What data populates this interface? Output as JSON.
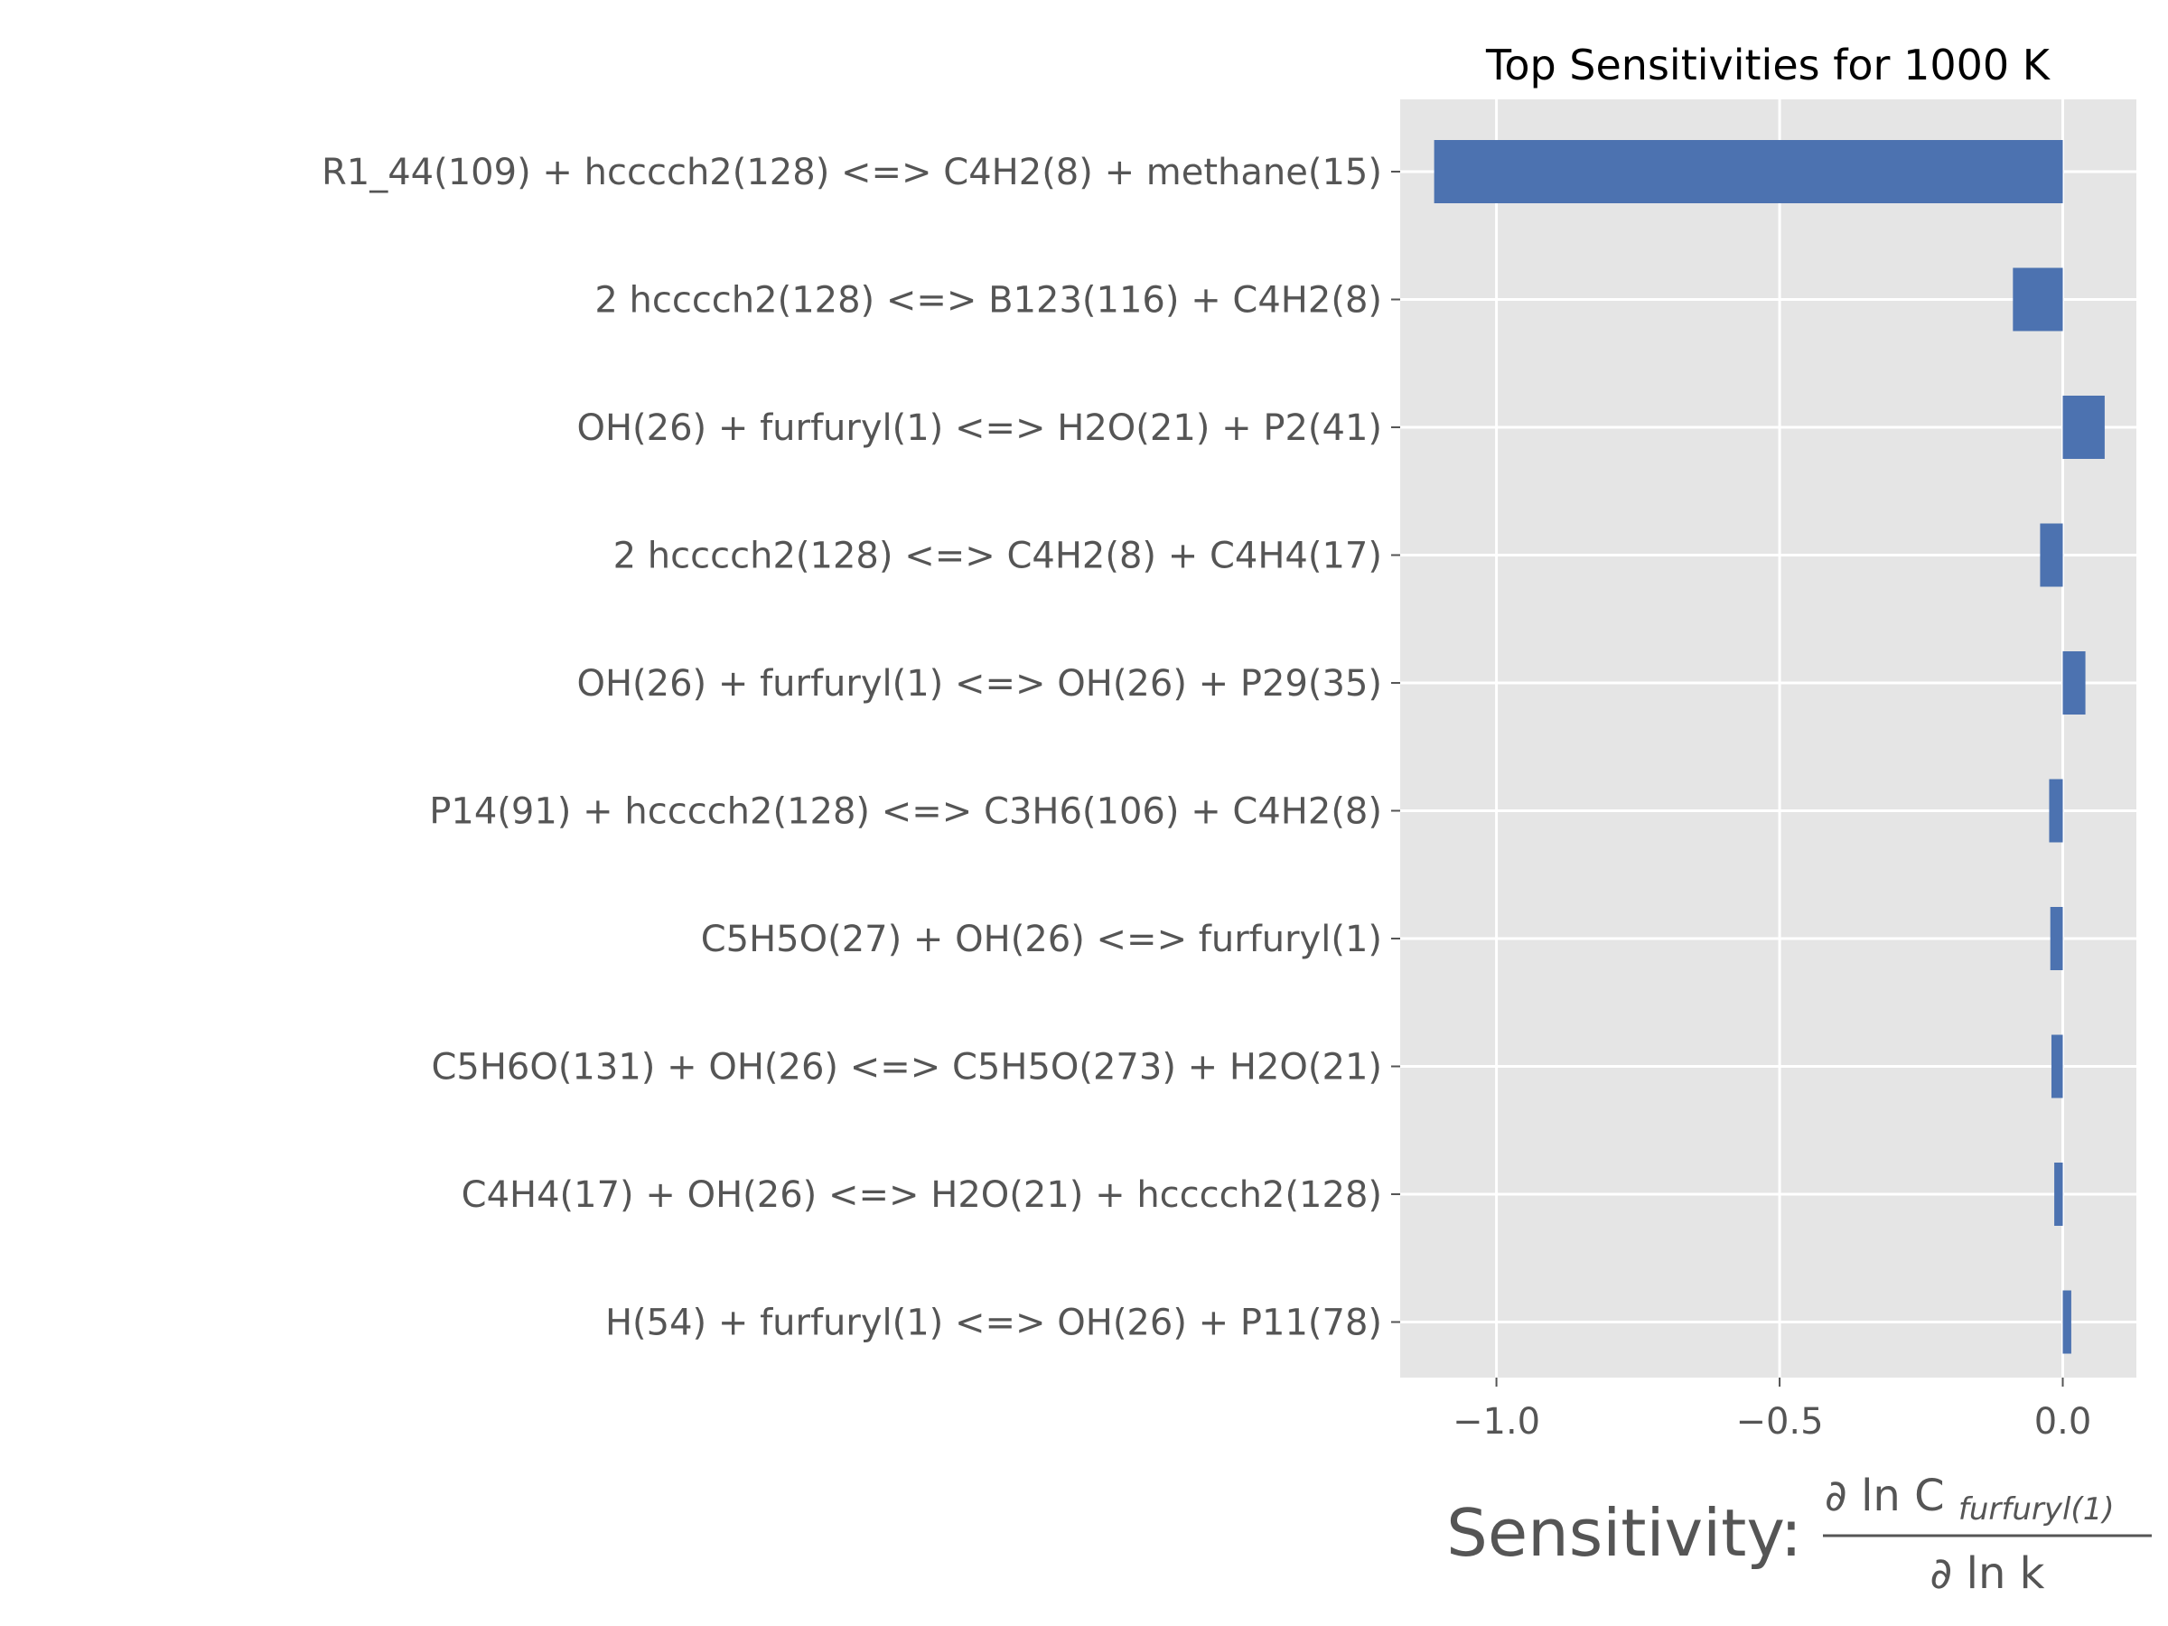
{
  "chart_data": {
    "type": "bar",
    "orientation": "horizontal",
    "title": "Top Sensitivities for 1000 K",
    "xlabel": {
      "prefix": "Sensitivity:",
      "numerator": "∂ ln C",
      "numerator_subscript": "furfuryl(1)",
      "denominator": "∂ ln k"
    },
    "ylabel": "",
    "xlim": [
      -1.17,
      0.13
    ],
    "xticks": [
      -1.0,
      -0.5,
      0.0
    ],
    "xtick_labels": [
      "−1.0",
      "−0.5",
      "0.0"
    ],
    "grid": true,
    "bar_color": "#4c72b0",
    "background_color": "#e5e5e5",
    "categories": [
      "R1_44(109) + hcccch2(128) <=> C4H2(8) + methane(15)",
      "2 hcccch2(128) <=> B123(116) + C4H2(8)",
      "OH(26) + furfuryl(1) <=> H2O(21) + P2(41)",
      "2 hcccch2(128) <=> C4H2(8) + C4H4(17)",
      "OH(26) + furfuryl(1) <=> OH(26) + P29(35)",
      "P14(91) + hcccch2(128) <=> C3H6(106) + C4H2(8)",
      "C5H5O(27) + OH(26) <=> furfuryl(1)",
      "C5H6O(131) + OH(26) <=> C5H5O(273) + H2O(21)",
      "C4H4(17) + OH(26) <=> H2O(21) + hcccch2(128)",
      "H(54) + furfuryl(1) <=> OH(26) + P11(78)"
    ],
    "values": [
      -1.11,
      -0.088,
      0.074,
      -0.04,
      0.04,
      -0.024,
      -0.022,
      -0.02,
      -0.015,
      0.015
    ]
  }
}
